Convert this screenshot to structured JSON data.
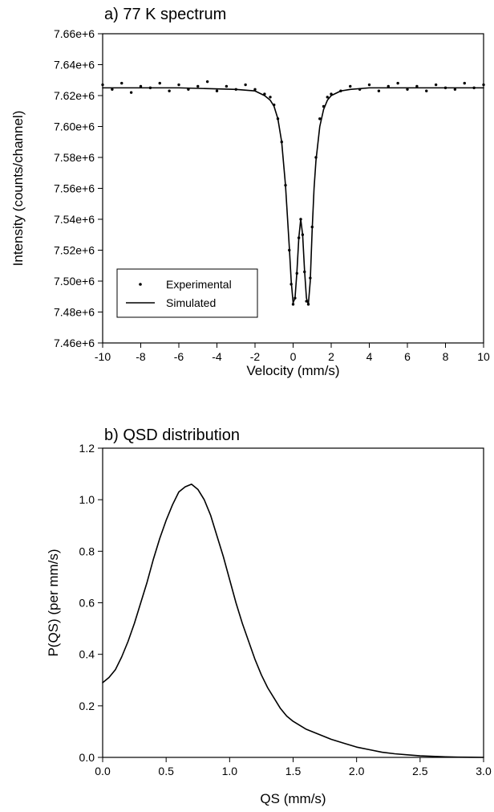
{
  "chart_data": [
    {
      "type": "scatter",
      "title": "a) 77 K spectrum",
      "xlabel": "Velocity (mm/s)",
      "ylabel": "Intensity (counts/channel)",
      "xlim": [
        -10,
        10
      ],
      "ylim": [
        7460000,
        7660000
      ],
      "xticks": [
        -10,
        -8,
        -6,
        -4,
        -2,
        0,
        2,
        4,
        6,
        8,
        10
      ],
      "yticks": [
        7460000,
        7480000,
        7500000,
        7520000,
        7540000,
        7560000,
        7580000,
        7600000,
        7620000,
        7640000,
        7660000
      ],
      "x_tick_labels": [
        "-10",
        "-8",
        "-6",
        "-4",
        "-2",
        "0",
        "2",
        "4",
        "6",
        "8",
        "10"
      ],
      "y_tick_labels": [
        "7.46e+6",
        "7.48e+6",
        "7.50e+6",
        "7.52e+6",
        "7.54e+6",
        "7.56e+6",
        "7.58e+6",
        "7.60e+6",
        "7.62e+6",
        "7.64e+6",
        "7.66e+6"
      ],
      "grid": false,
      "legend_position": "bottom-left",
      "legend": [
        "Experimental",
        "Simulated"
      ],
      "series": [
        {
          "name": "Experimental",
          "style": "points",
          "x": [
            -10,
            -9.5,
            -9,
            -8.5,
            -8,
            -7.5,
            -7,
            -6.5,
            -6,
            -5.5,
            -5,
            -4.5,
            -4,
            -3.5,
            -3,
            -2.5,
            -2,
            -1.5,
            -1.2,
            -1,
            -0.8,
            -0.6,
            -0.4,
            -0.2,
            -0.1,
            0,
            0.1,
            0.2,
            0.3,
            0.4,
            0.5,
            0.6,
            0.7,
            0.8,
            0.9,
            1,
            1.2,
            1.4,
            1.6,
            1.8,
            2,
            2.5,
            3,
            3.5,
            4,
            4.5,
            5,
            5.5,
            6,
            6.5,
            7,
            7.5,
            8,
            8.5,
            9,
            9.5,
            10
          ],
          "y": [
            7627000,
            7624000,
            7628000,
            7622000,
            7626000,
            7625000,
            7628000,
            7623000,
            7627000,
            7624000,
            7626000,
            7629000,
            7623000,
            7626000,
            7624000,
            7627000,
            7624000,
            7621000,
            7619000,
            7614000,
            7605000,
            7590000,
            7562000,
            7520000,
            7498000,
            7485000,
            7489000,
            7505000,
            7528000,
            7540000,
            7530000,
            7506000,
            7487000,
            7485000,
            7502000,
            7535000,
            7580000,
            7605000,
            7613000,
            7619000,
            7621000,
            7623000,
            7626000,
            7624000,
            7627000,
            7623000,
            7626000,
            7628000,
            7624000,
            7626000,
            7623000,
            7627000,
            7625000,
            7624000,
            7628000,
            7625000,
            7627000
          ]
        },
        {
          "name": "Simulated",
          "style": "line",
          "x": [
            -10,
            -6,
            -3,
            -2,
            -1.5,
            -1.2,
            -1,
            -0.8,
            -0.6,
            -0.4,
            -0.2,
            -0.1,
            0,
            0.1,
            0.2,
            0.3,
            0.4,
            0.5,
            0.6,
            0.7,
            0.8,
            0.9,
            1,
            1.1,
            1.2,
            1.4,
            1.6,
            1.8,
            2,
            2.5,
            3,
            4,
            6,
            10
          ],
          "y": [
            7625000,
            7625000,
            7624000,
            7623000,
            7620000,
            7617000,
            7613000,
            7605000,
            7590000,
            7562000,
            7522000,
            7500000,
            7486000,
            7489000,
            7506000,
            7528000,
            7540000,
            7530000,
            7507000,
            7489000,
            7485000,
            7500000,
            7533000,
            7560000,
            7578000,
            7600000,
            7611000,
            7617000,
            7620000,
            7623000,
            7624000,
            7625000,
            7625000,
            7625000
          ]
        }
      ]
    },
    {
      "type": "line",
      "title": "b) QSD distribution",
      "xlabel": "QS (mm/s)",
      "ylabel": "P(QS) (per mm/s)",
      "xlim": [
        0,
        3
      ],
      "ylim": [
        0,
        1.2
      ],
      "xticks": [
        0,
        0.5,
        1,
        1.5,
        2,
        2.5,
        3
      ],
      "yticks": [
        0,
        0.2,
        0.4,
        0.6,
        0.8,
        1,
        1.2
      ],
      "x_tick_labels": [
        "0.0",
        "0.5",
        "1.0",
        "1.5",
        "2.0",
        "2.5",
        "3.0"
      ],
      "y_tick_labels": [
        "0.0",
        "0.2",
        "0.4",
        "0.6",
        "0.8",
        "1.0",
        "1.2"
      ],
      "grid": false,
      "series": [
        {
          "x": [
            0,
            0.05,
            0.1,
            0.15,
            0.2,
            0.25,
            0.3,
            0.35,
            0.4,
            0.45,
            0.5,
            0.55,
            0.6,
            0.65,
            0.7,
            0.75,
            0.8,
            0.85,
            0.9,
            0.95,
            1,
            1.05,
            1.1,
            1.15,
            1.2,
            1.25,
            1.3,
            1.35,
            1.4,
            1.45,
            1.5,
            1.6,
            1.7,
            1.8,
            1.9,
            2,
            2.1,
            2.2,
            2.3,
            2.4,
            2.5,
            2.6,
            2.7,
            2.8,
            2.9,
            3
          ],
          "y": [
            0.29,
            0.31,
            0.34,
            0.39,
            0.45,
            0.52,
            0.6,
            0.68,
            0.77,
            0.85,
            0.92,
            0.98,
            1.03,
            1.05,
            1.06,
            1.04,
            1.0,
            0.94,
            0.86,
            0.78,
            0.69,
            0.6,
            0.52,
            0.45,
            0.38,
            0.32,
            0.27,
            0.23,
            0.19,
            0.16,
            0.14,
            0.11,
            0.09,
            0.07,
            0.055,
            0.04,
            0.03,
            0.02,
            0.014,
            0.01,
            0.006,
            0.004,
            0.002,
            0.001,
            0.0005,
            0
          ]
        }
      ]
    }
  ]
}
